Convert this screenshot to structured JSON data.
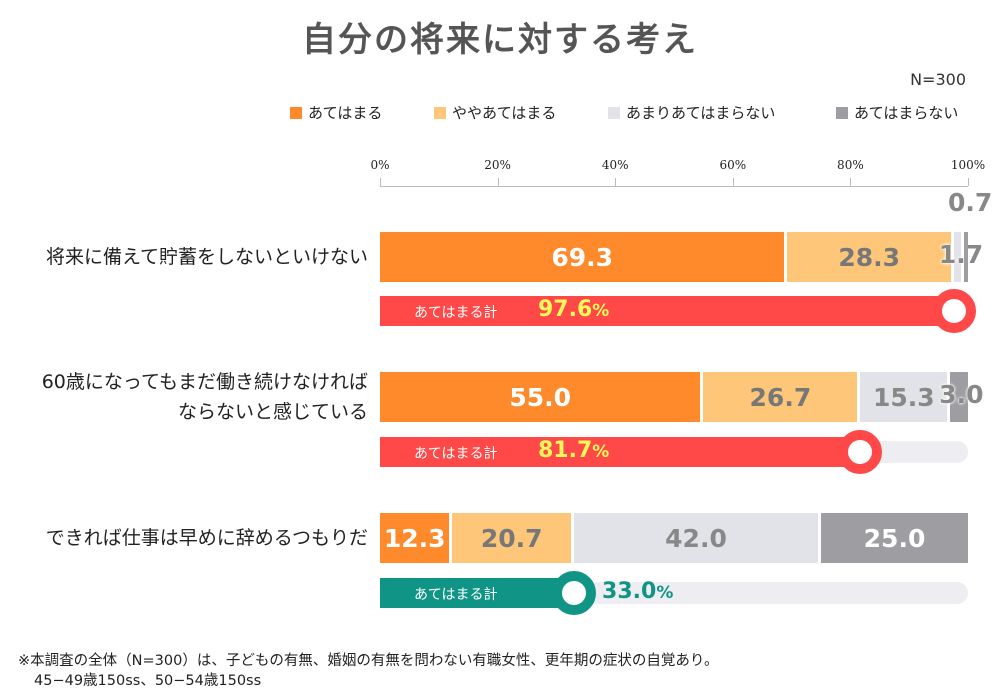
{
  "chart_data": {
    "type": "bar",
    "orientation": "horizontal",
    "stacked": true,
    "title": "自分の将来に対する考え",
    "sample": "N=300",
    "xlim": [
      0,
      100
    ],
    "ticks": [
      "0%",
      "20%",
      "40%",
      "60%",
      "80%",
      "100%"
    ],
    "legend_position": "top-right",
    "series": [
      {
        "name": "あてはまる",
        "color": "#ff8a2b",
        "text_color": "#ffffff"
      },
      {
        "name": "ややあてはまる",
        "color": "#fdc678",
        "text_color": "#777777"
      },
      {
        "name": "あまりあてはまらない",
        "color": "#e2e3e8",
        "text_color": "#888888"
      },
      {
        "name": "あてはまらない",
        "color": "#9d9da2",
        "text_color": "#ffffff"
      }
    ],
    "categories": [
      {
        "label": [
          "将来に備えて貯蓄をしないといけない"
        ],
        "values": [
          69.3,
          28.3,
          1.7,
          0.7
        ],
        "value_labels": [
          "69.3",
          "28.3",
          "1.7",
          "0.7"
        ],
        "total_label": "あてはまる計",
        "total": 97.6,
        "total_text": "97.6",
        "total_color": "#ff4848"
      },
      {
        "label": [
          "60歳になってもまだ働き続けなければ",
          "ならないと感じている"
        ],
        "values": [
          55.0,
          26.7,
          15.3,
          3.0
        ],
        "value_labels": [
          "55.0",
          "26.7",
          "15.3",
          "3.0"
        ],
        "total_label": "あてはまる計",
        "total": 81.7,
        "total_text": "81.7",
        "total_color": "#ff4848"
      },
      {
        "label": [
          "できれば仕事は早めに辞めるつもりだ"
        ],
        "values": [
          12.3,
          20.7,
          42.0,
          25.0
        ],
        "value_labels": [
          "12.3",
          "20.7",
          "42.0",
          "25.0"
        ],
        "total_label": "あてはまる計",
        "total": 33.0,
        "total_text": "33.0",
        "total_color": "#109485"
      }
    ],
    "percent_sign": "%"
  },
  "footnote": [
    "※本調査の全体（N=300）は、子どもの有無、婚姻の有無を問わない有職女性、更年期の症状の自覚あり。",
    "45−49歳150ss、50−54歳150ss"
  ]
}
